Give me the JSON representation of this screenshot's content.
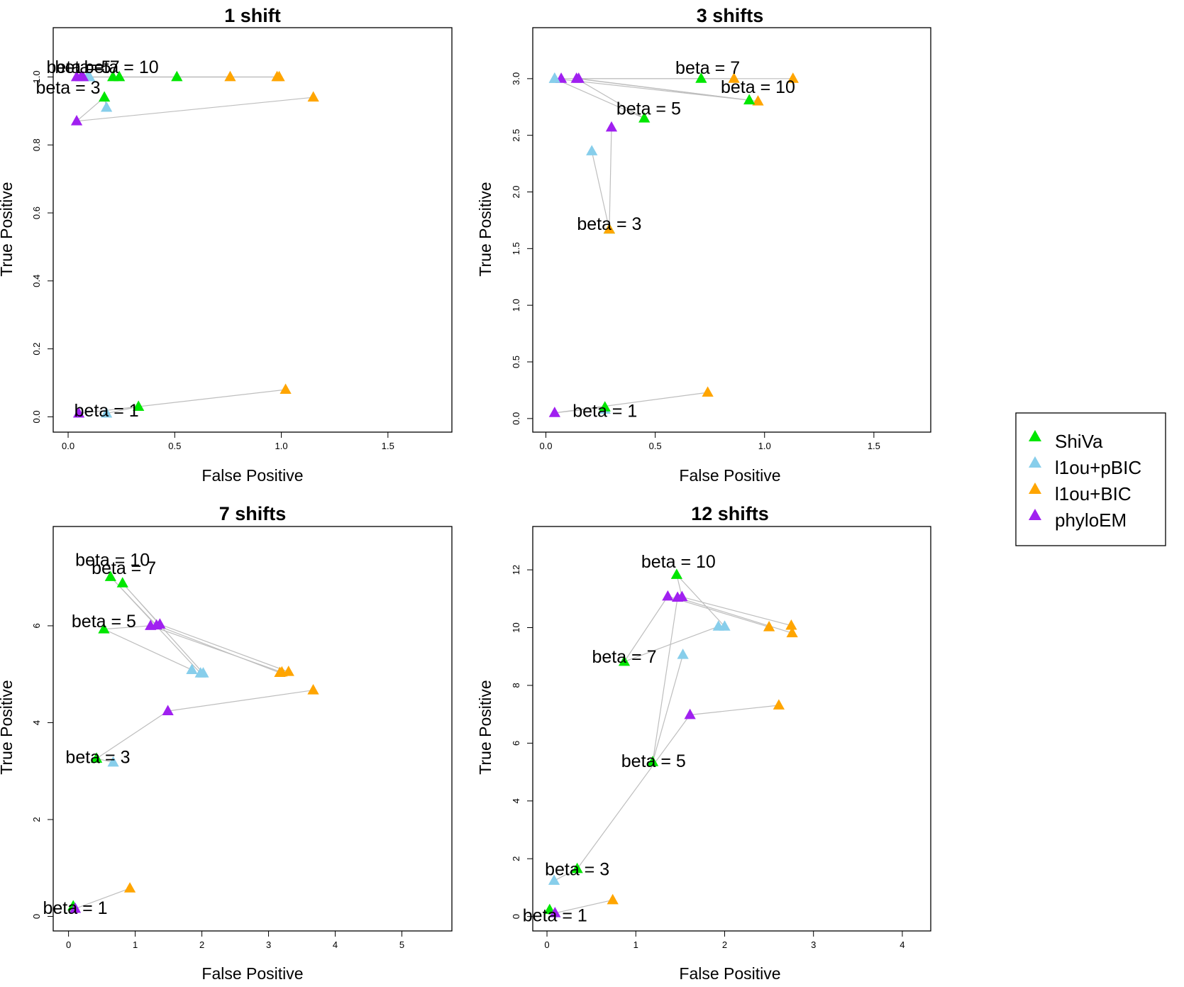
{
  "colors": {
    "ShiVa": "#00e600",
    "l1ou+pBIC": "#87ceeb",
    "l1ou+BIC": "#ffa500",
    "phyloEM": "#a020f0",
    "line": "#bebebe"
  },
  "legend": {
    "entries": [
      "ShiVa",
      "l1ou+pBIC",
      "l1ou+BIC",
      "phyloEM"
    ],
    "placement": "right"
  },
  "chart_data": [
    {
      "type": "scatter",
      "title": "1 shift",
      "xlabel": "False Positive",
      "ylabel": "True Positive",
      "xlim": [
        -0.07,
        1.8
      ],
      "ylim": [
        -0.045,
        1.145
      ],
      "xticks": [
        0.0,
        0.5,
        1.0,
        1.5
      ],
      "xtick_labels": [
        "0.0",
        "0.5",
        "1.0",
        "1.5"
      ],
      "yticks": [
        0.0,
        0.2,
        0.4,
        0.6,
        0.8,
        1.0
      ],
      "ytick_labels": [
        "0.0",
        "0.2",
        "0.4",
        "0.6",
        "0.8",
        "1.0"
      ],
      "method_order": [
        "l1ou+pBIC",
        "ShiVa",
        "phyloEM",
        "l1ou+BIC"
      ],
      "groups": [
        {
          "label": "beta = 1",
          "label_pos": [
            0.18,
            0.02
          ],
          "points": {
            "ShiVa": [
              0.33,
              0.03
            ],
            "l1ou+pBIC": [
              0.18,
              0.01
            ],
            "l1ou+BIC": [
              1.02,
              0.08
            ],
            "phyloEM": [
              0.05,
              0.01
            ]
          }
        },
        {
          "label": "beta = 3",
          "label_pos": [
            0.0,
            0.97
          ],
          "points": {
            "ShiVa": [
              0.17,
              0.94
            ],
            "l1ou+pBIC": [
              0.18,
              0.91
            ],
            "l1ou+BIC": [
              1.15,
              0.94
            ],
            "phyloEM": [
              0.04,
              0.87
            ]
          }
        },
        {
          "label": "beta = 5",
          "label_pos": [
            0.05,
            1.03
          ],
          "points": {
            "ShiVa": [
              0.21,
              1.0
            ],
            "l1ou+pBIC": [
              0.09,
              1.0
            ],
            "l1ou+BIC": [
              0.99,
              1.0
            ],
            "phyloEM": [
              0.04,
              1.0
            ]
          }
        },
        {
          "label": "beta = 7",
          "label_pos": [
            0.09,
            1.03
          ],
          "points": {
            "ShiVa": [
              0.24,
              1.0
            ],
            "l1ou+pBIC": [
              0.1,
              1.0
            ],
            "l1ou+BIC": [
              0.98,
              1.0
            ],
            "phyloEM": [
              0.06,
              1.0
            ]
          }
        },
        {
          "label": "beta = 10",
          "label_pos": [
            0.25,
            1.03
          ],
          "points": {
            "ShiVa": [
              0.51,
              1.0
            ],
            "l1ou+pBIC": [
              0.1,
              1.0
            ],
            "l1ou+BIC": [
              0.76,
              1.0
            ],
            "phyloEM": [
              0.07,
              1.0
            ]
          }
        }
      ]
    },
    {
      "type": "scatter",
      "title": "3 shifts",
      "xlabel": "False Positive",
      "ylabel": "True Positive",
      "xlim": [
        -0.06,
        1.76
      ],
      "ylim": [
        -0.12,
        3.45
      ],
      "xticks": [
        0.0,
        0.5,
        1.0,
        1.5
      ],
      "xtick_labels": [
        "0.0",
        "0.5",
        "1.0",
        "1.5"
      ],
      "yticks": [
        0.0,
        0.5,
        1.0,
        1.5,
        2.0,
        2.5,
        3.0
      ],
      "ytick_labels": [
        "0.0",
        "0.5",
        "1.0",
        "1.5",
        "2.0",
        "2.5",
        "3.0"
      ],
      "method_order": [
        "l1ou+pBIC",
        "ShiVa",
        "phyloEM",
        "l1ou+BIC"
      ],
      "groups": [
        {
          "label": "beta = 1",
          "label_pos": [
            0.27,
            0.07
          ],
          "points": {
            "ShiVa": [
              0.27,
              0.1
            ],
            "l1ou+pBIC": [
              0.27,
              0.08
            ],
            "l1ou+BIC": [
              0.74,
              0.23
            ],
            "phyloEM": [
              0.04,
              0.05
            ]
          }
        },
        {
          "label": "beta = 3",
          "label_pos": [
            0.29,
            1.72
          ],
          "points": {
            "ShiVa": [
              0.29,
              1.67
            ],
            "l1ou+pBIC": [
              0.21,
              2.36
            ],
            "l1ou+BIC": [
              0.29,
              1.67
            ],
            "phyloEM": [
              0.3,
              2.57
            ]
          }
        },
        {
          "label": "beta = 5",
          "label_pos": [
            0.47,
            2.74
          ],
          "points": {
            "ShiVa": [
              0.45,
              2.65
            ],
            "l1ou+pBIC": [
              0.04,
              3.0
            ],
            "l1ou+BIC": [
              0.97,
              2.8
            ],
            "phyloEM": [
              0.14,
              3.0
            ]
          }
        },
        {
          "label": "beta = 7",
          "label_pos": [
            0.74,
            3.1
          ],
          "points": {
            "ShiVa": [
              0.71,
              3.0
            ],
            "l1ou+pBIC": [
              0.04,
              3.0
            ],
            "l1ou+BIC": [
              0.86,
              3.0
            ],
            "phyloEM": [
              0.07,
              3.0
            ]
          }
        },
        {
          "label": "beta = 10",
          "label_pos": [
            0.97,
            2.93
          ],
          "points": {
            "ShiVa": [
              0.93,
              2.81
            ],
            "l1ou+pBIC": [
              0.04,
              3.0
            ],
            "l1ou+BIC": [
              1.13,
              3.0
            ],
            "phyloEM": [
              0.15,
              3.0
            ]
          }
        }
      ]
    },
    {
      "type": "scatter",
      "title": "7 shifts",
      "xlabel": "False Positive",
      "ylabel": "True Positive",
      "xlim": [
        -0.23,
        5.75
      ],
      "ylim": [
        -0.3,
        8.05
      ],
      "xticks": [
        0,
        1,
        2,
        3,
        4,
        5
      ],
      "xtick_labels": [
        "0",
        "1",
        "2",
        "3",
        "4",
        "5"
      ],
      "yticks": [
        0,
        2,
        4,
        6
      ],
      "ytick_labels": [
        "0",
        "2",
        "4",
        "6"
      ],
      "method_order": [
        "l1ou+pBIC",
        "ShiVa",
        "phyloEM",
        "l1ou+BIC"
      ],
      "groups": [
        {
          "label": "beta = 1",
          "label_pos": [
            0.1,
            0.18
          ],
          "points": {
            "ShiVa": [
              0.07,
              0.21
            ],
            "l1ou+pBIC": [
              0.1,
              0.16
            ],
            "l1ou+BIC": [
              0.92,
              0.58
            ],
            "phyloEM": [
              0.1,
              0.16
            ]
          }
        },
        {
          "label": "beta = 3",
          "label_pos": [
            0.44,
            3.3
          ],
          "points": {
            "ShiVa": [
              0.42,
              3.26
            ],
            "l1ou+pBIC": [
              0.67,
              3.18
            ],
            "l1ou+BIC": [
              3.67,
              4.67
            ],
            "phyloEM": [
              1.49,
              4.24
            ]
          }
        },
        {
          "label": "beta = 5",
          "label_pos": [
            0.53,
            6.1
          ],
          "points": {
            "ShiVa": [
              0.53,
              5.93
            ],
            "l1ou+pBIC": [
              1.85,
              5.09
            ],
            "l1ou+BIC": [
              3.2,
              5.04
            ],
            "phyloEM": [
              1.23,
              6.0
            ]
          }
        },
        {
          "label": "beta = 7",
          "label_pos": [
            0.83,
            7.2
          ],
          "points": {
            "ShiVa": [
              0.81,
              6.88
            ],
            "l1ou+pBIC": [
              2.02,
              5.02
            ],
            "l1ou+BIC": [
              3.3,
              5.05
            ],
            "phyloEM": [
              1.37,
              6.03
            ]
          }
        },
        {
          "label": "beta = 10",
          "label_pos": [
            0.66,
            7.37
          ],
          "points": {
            "ShiVa": [
              0.63,
              7.01
            ],
            "l1ou+pBIC": [
              1.98,
              5.02
            ],
            "l1ou+BIC": [
              3.17,
              5.03
            ],
            "phyloEM": [
              1.32,
              6.01
            ]
          }
        }
      ]
    },
    {
      "type": "scatter",
      "title": "12 shifts",
      "xlabel": "False Positive",
      "ylabel": "True Positive",
      "xlim": [
        -0.16,
        4.32
      ],
      "ylim": [
        -0.5,
        13.5
      ],
      "xticks": [
        0,
        1,
        2,
        3,
        4
      ],
      "xtick_labels": [
        "0",
        "1",
        "2",
        "3",
        "4"
      ],
      "yticks": [
        0,
        2,
        4,
        6,
        8,
        10,
        12
      ],
      "ytick_labels": [
        "0",
        "2",
        "4",
        "6",
        "8",
        "10",
        "12"
      ],
      "method_order": [
        "l1ou+pBIC",
        "ShiVa",
        "phyloEM",
        "l1ou+BIC"
      ],
      "groups": [
        {
          "label": "beta = 1",
          "label_pos": [
            0.09,
            0.05
          ],
          "points": {
            "ShiVa": [
              0.03,
              0.23
            ],
            "l1ou+pBIC": [
              0.09,
              0.12
            ],
            "l1ou+BIC": [
              0.74,
              0.57
            ],
            "phyloEM": [
              0.09,
              0.12
            ]
          }
        },
        {
          "label": "beta = 3",
          "label_pos": [
            0.34,
            1.65
          ],
          "points": {
            "ShiVa": [
              0.34,
              1.65
            ],
            "l1ou+pBIC": [
              0.08,
              1.24
            ],
            "l1ou+BIC": [
              2.61,
              7.31
            ],
            "phyloEM": [
              1.61,
              6.98
            ]
          }
        },
        {
          "label": "beta = 5",
          "label_pos": [
            1.2,
            5.4
          ],
          "points": {
            "ShiVa": [
              1.19,
              5.35
            ],
            "l1ou+pBIC": [
              1.53,
              9.06
            ],
            "l1ou+BIC": [
              2.76,
              9.81
            ],
            "phyloEM": [
              1.47,
              11.04
            ]
          }
        },
        {
          "label": "beta = 7",
          "label_pos": [
            0.87,
            9.0
          ],
          "points": {
            "ShiVa": [
              0.87,
              8.82
            ],
            "l1ou+pBIC": [
              1.93,
              10.04
            ],
            "l1ou+BIC": [
              2.5,
              10.02
            ],
            "phyloEM": [
              1.36,
              11.08
            ]
          }
        },
        {
          "label": "beta = 10",
          "label_pos": [
            1.48,
            12.3
          ],
          "points": {
            "ShiVa": [
              1.46,
              11.83
            ],
            "l1ou+pBIC": [
              2.0,
              10.04
            ],
            "l1ou+BIC": [
              2.75,
              10.07
            ],
            "phyloEM": [
              1.52,
              11.06
            ]
          }
        }
      ]
    }
  ]
}
